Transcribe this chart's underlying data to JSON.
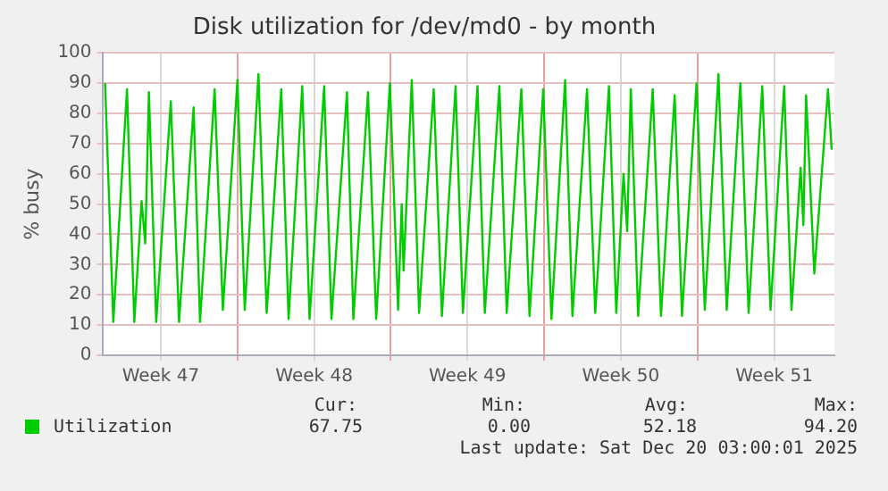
{
  "chart_data": {
    "type": "line",
    "title": "Disk utilization for /dev/md0 - by month",
    "ylabel": "% busy",
    "x": [
      "2025-11-16T20:00",
      "2025-11-17T05:00",
      "2025-11-17T20:00",
      "2025-11-18T04:00",
      "2025-11-18T12:00",
      "2025-11-18T16:00",
      "2025-11-18T20:00",
      "2025-11-19T04:00",
      "2025-11-19T20:00",
      "2025-11-20T05:00",
      "2025-11-20T21:00",
      "2025-11-21T04:00",
      "2025-11-21T20:00",
      "2025-11-22T05:00",
      "2025-11-22T21:00",
      "2025-11-23T05:00",
      "2025-11-23T20:00",
      "2025-11-24T05:00",
      "2025-11-24T21:00",
      "2025-11-25T05:00",
      "2025-11-25T20:00",
      "2025-11-26T04:00",
      "2025-11-26T20:00",
      "2025-11-27T04:00",
      "2025-11-27T21:00",
      "2025-11-28T04:00",
      "2025-11-28T20:00",
      "2025-11-29T05:00",
      "2025-11-29T20:00",
      "2025-11-30T05:00",
      "2025-11-30T09:00",
      "2025-11-30T11:00",
      "2025-11-30T20:00",
      "2025-12-01T04:00",
      "2025-12-01T20:00",
      "2025-12-02T05:00",
      "2025-12-02T20:00",
      "2025-12-03T04:00",
      "2025-12-03T20:00",
      "2025-12-04T04:00",
      "2025-12-04T20:00",
      "2025-12-05T04:00",
      "2025-12-05T20:00",
      "2025-12-06T05:00",
      "2025-12-06T20:00",
      "2025-12-07T05:00",
      "2025-12-07T20:00",
      "2025-12-08T04:00",
      "2025-12-08T20:00",
      "2025-12-09T05:00",
      "2025-12-09T20:00",
      "2025-12-10T04:00",
      "2025-12-10T12:00",
      "2025-12-10T16:00",
      "2025-12-10T20:00",
      "2025-12-11T04:00",
      "2025-12-11T20:00",
      "2025-12-12T05:00",
      "2025-12-12T20:00",
      "2025-12-13T04:00",
      "2025-12-13T20:00",
      "2025-12-14T05:00",
      "2025-12-14T20:00",
      "2025-12-15T05:00",
      "2025-12-15T20:00",
      "2025-12-16T05:00",
      "2025-12-16T20:00",
      "2025-12-17T05:00",
      "2025-12-17T20:00",
      "2025-12-18T04:00",
      "2025-12-18T14:00",
      "2025-12-18T17:00",
      "2025-12-18T20:00",
      "2025-12-19T05:00",
      "2025-12-19T20:00",
      "2025-12-20T00:00"
    ],
    "series": [
      {
        "name": "Utilization",
        "color": "#00cc00",
        "values": [
          90,
          11,
          88,
          11,
          51,
          37,
          87,
          11,
          84,
          11,
          82,
          11,
          88,
          15,
          91,
          15,
          93,
          14,
          88,
          12,
          89,
          12,
          89,
          12,
          87,
          12,
          87,
          12,
          90,
          15,
          50,
          28,
          91,
          14,
          88,
          13,
          89,
          14,
          89,
          14,
          89,
          14,
          88,
          13,
          88,
          12,
          91,
          13,
          88,
          14,
          89,
          14,
          60,
          41,
          88,
          13,
          88,
          13,
          86,
          13,
          90,
          15,
          93,
          15,
          90,
          14,
          89,
          15,
          89,
          15,
          62,
          43,
          86,
          27,
          88,
          68
        ]
      }
    ],
    "xlim": [
      "2025-11-16T17:00",
      "2025-12-20T03:00"
    ],
    "xticks": [
      {
        "value": "2025-11-19T09:00",
        "label": "Week 47"
      },
      {
        "value": "2025-11-22T21:00",
        "label": null
      },
      {
        "value": "2025-11-26T09:00",
        "label": "Week 48"
      },
      {
        "value": "2025-11-29T21:00",
        "label": null
      },
      {
        "value": "2025-12-03T09:00",
        "label": "Week 49"
      },
      {
        "value": "2025-12-06T21:00",
        "label": null
      },
      {
        "value": "2025-12-10T09:00",
        "label": "Week 50"
      },
      {
        "value": "2025-12-13T21:00",
        "label": null
      },
      {
        "value": "2025-12-17T09:00",
        "label": "Week 51"
      }
    ],
    "ylim": [
      0,
      100
    ],
    "yticks": [
      0,
      10,
      20,
      30,
      40,
      50,
      60,
      70,
      80,
      90,
      100
    ],
    "grid": true,
    "legend": "bottom",
    "marker": "none",
    "line_style": "solid",
    "annotations": [
      "Cur:",
      "Min:",
      "Avg:",
      "Max:",
      "67.75",
      "0.00",
      "52.18",
      "94.20",
      "Last update: Sat Dec 20 03:00:01 2025"
    ]
  }
}
